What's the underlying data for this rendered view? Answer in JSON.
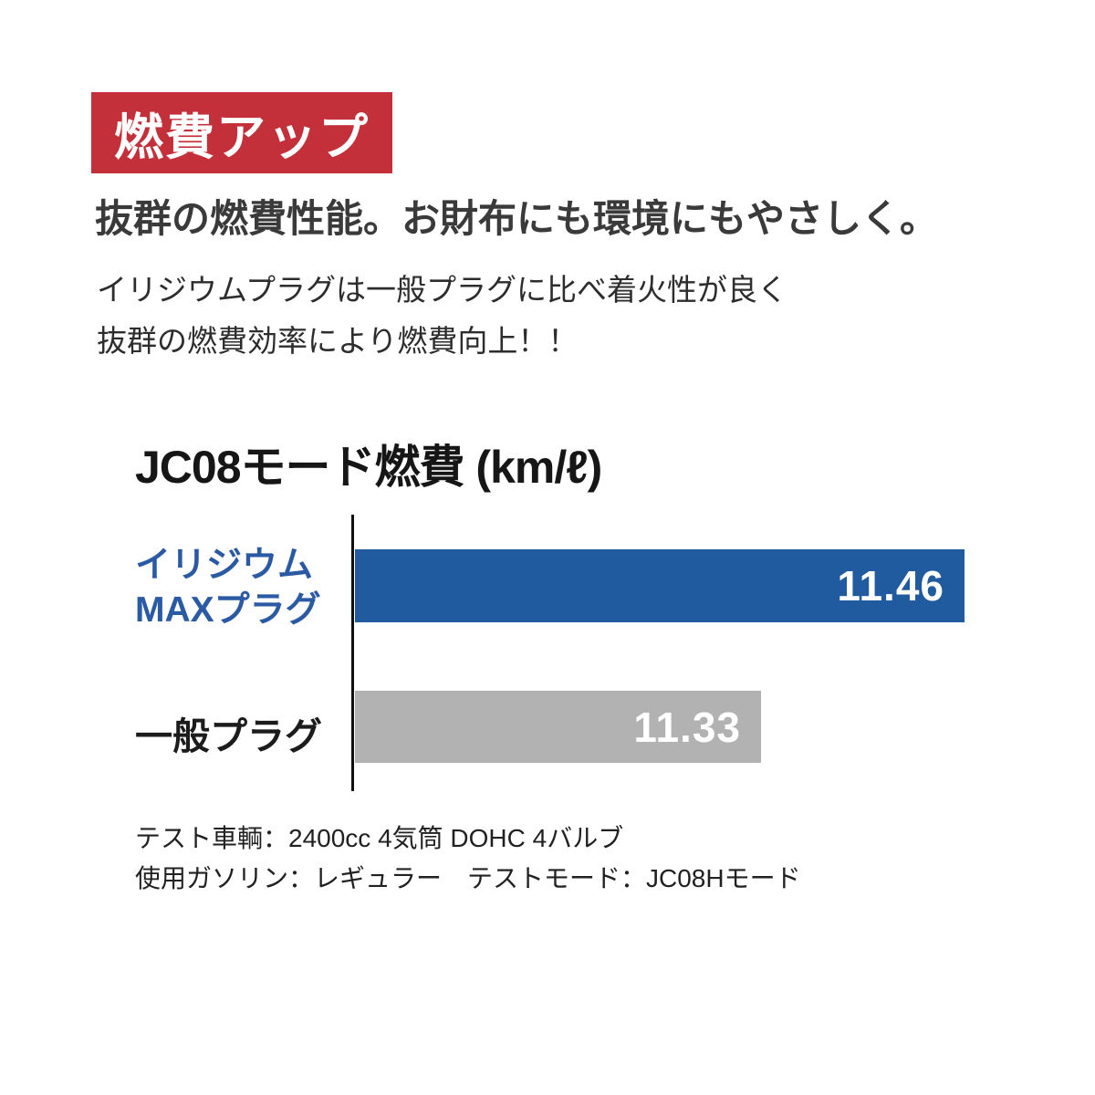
{
  "badge": {
    "label": "燃費アップ",
    "bg_color": "#c4303a",
    "text_color": "#ffffff",
    "style": "background:#c4303a;color:#ffffff"
  },
  "headline": {
    "text": "抜群の燃費性能。お財布にも環境にもやさしく。",
    "color": "#3a3a3a"
  },
  "description": {
    "line1": "イリジウムプラグは一般プラグに比べ着火性が良く",
    "line2": "抜群の燃費効率により燃費向上！！"
  },
  "chart_data": {
    "type": "bar",
    "orientation": "horizontal",
    "title": "JC08モード燃費 (km/ℓ)",
    "unit": "km/ℓ",
    "categories": [
      "イリジウムMAXプラグ",
      "一般プラグ"
    ],
    "values": [
      11.46,
      11.33
    ],
    "x_baseline_estimate": 11.07,
    "grid": false,
    "legend": "none",
    "value_label_position": "inside-right",
    "axis_color": "#101010",
    "rows": [
      {
        "label_lines": [
          "イリジウム",
          "MAXプラグ"
        ],
        "value": "11.46",
        "bar_color": "#1f5b9e",
        "label_color": "#2a5aa4",
        "bar_style": "width:668px;background:#1f5b9e",
        "label_style": "color:#2a5aa4"
      },
      {
        "label_lines": [
          "一般プラグ",
          ""
        ],
        "value": "11.33",
        "bar_color": "#b2b2b2",
        "label_color": "#1c1c1c",
        "bar_style": "width:445px;background:#b2b2b2",
        "label_style": "color:#1c1c1c"
      }
    ]
  },
  "footnotes": {
    "line1": "テスト車輌：2400cc 4気筒 DOHC 4バルブ",
    "line2": "使用ガソリン：レギュラー　テストモード：JC08Hモード"
  }
}
